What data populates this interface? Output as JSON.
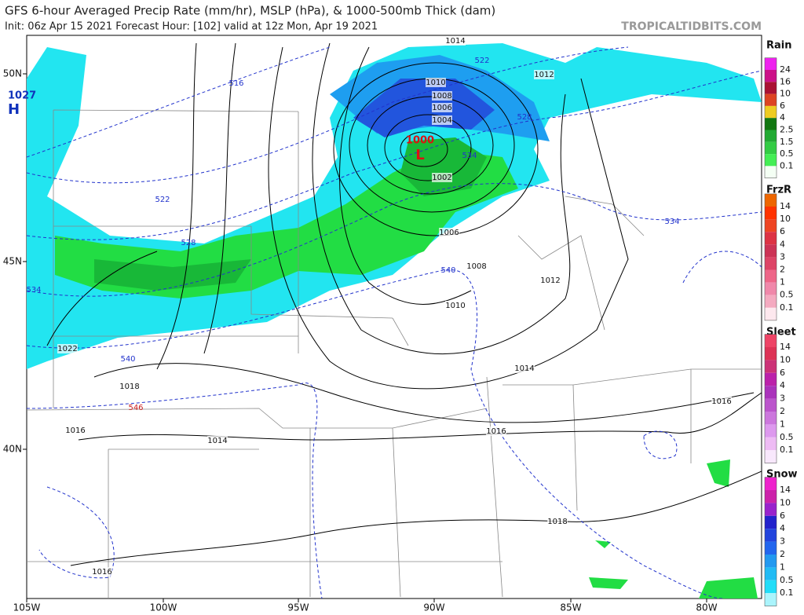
{
  "header": {
    "title": "GFS 6-hour Averaged Precip Rate (mm/hr), MSLP (hPa), & 1000-500mb Thick (dam)",
    "subtitle": "Init: 06z Apr 15 2021   Forecast Hour: [102]   valid at 12z Mon, Apr 19 2021",
    "source": "TROPICALTIDBITS.COM"
  },
  "map": {
    "lon_labels": [
      "105W",
      "100W",
      "95W",
      "90W",
      "85W",
      "80W"
    ],
    "lat_labels": [
      "50N",
      "45N",
      "40N"
    ],
    "high": {
      "value": "1027",
      "label": "H"
    },
    "low": {
      "value": "1000",
      "label": "L"
    },
    "isobar_labels": [
      "1014",
      "1012",
      "1010",
      "1008",
      "1006",
      "1004",
      "1002",
      "1006",
      "1008",
      "1010",
      "1012",
      "1014",
      "1016",
      "1016",
      "1018",
      "1022",
      "1014",
      "1016",
      "1016",
      "1018"
    ],
    "thickness_labels": [
      "516",
      "522",
      "522",
      "528",
      "528",
      "534",
      "534",
      "534",
      "540",
      "540",
      "546"
    ]
  },
  "legend": [
    {
      "name": "Rain",
      "levels": [
        "24",
        "16",
        "10",
        "6",
        "4",
        "2.5",
        "1.5",
        "0.5",
        "0.1"
      ]
    },
    {
      "name": "FrzR",
      "levels": [
        "14",
        "10",
        "6",
        "4",
        "3",
        "2",
        "1",
        "0.5",
        "0.1"
      ]
    },
    {
      "name": "Sleet",
      "levels": [
        "14",
        "10",
        "6",
        "4",
        "3",
        "2",
        "1",
        "0.5",
        "0.1"
      ]
    },
    {
      "name": "Snow",
      "levels": [
        "14",
        "10",
        "6",
        "4",
        "3",
        "2",
        "1",
        "0.5",
        "0.1"
      ]
    }
  ]
}
